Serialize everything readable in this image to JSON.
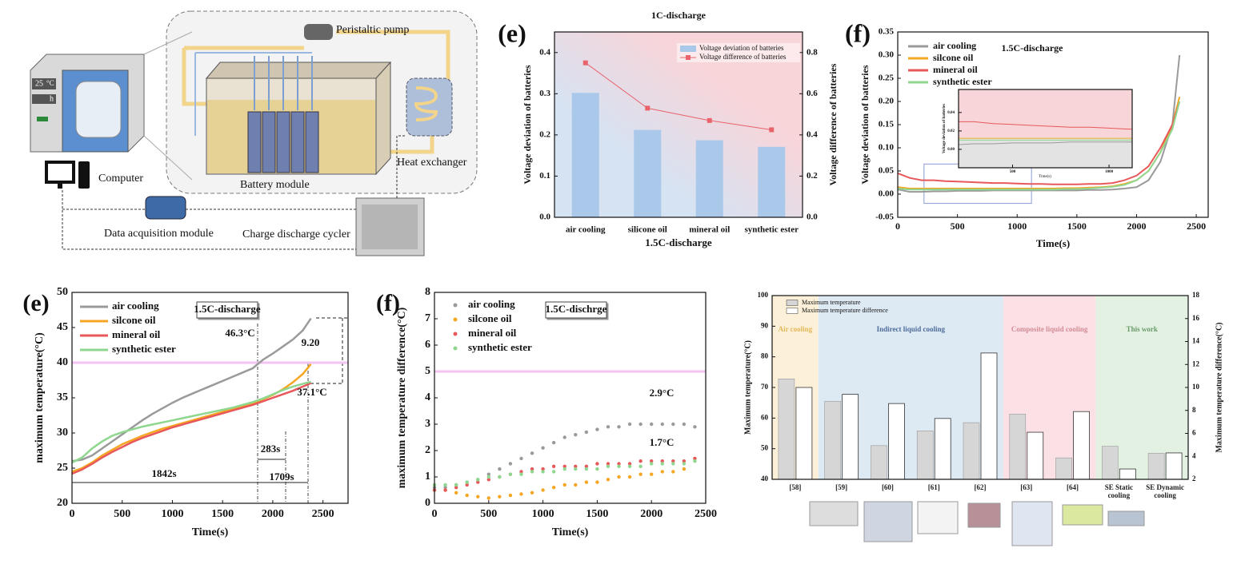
{
  "diagram": {
    "oven_temperature": "25",
    "oven_unit": "°C",
    "oven_time": "h",
    "pump": "Peristaltic pump",
    "heat_exchanger": "Heat exchanger",
    "computer": "Computer",
    "battery_module": "Battery module",
    "daq": "Data acquisition module",
    "cycler": "Charge discharge cycler"
  },
  "chart_data": [
    {
      "type": "bar",
      "panel_label": "(e)",
      "title": "1C-discharge",
      "xlabel": "1.5C-discharge",
      "ylabel": "Voltage deviation of batteries",
      "y2label": "Voltage difference of batteries",
      "categories": [
        "air cooling",
        "silicone oil",
        "mineral oil",
        "synthetic ester"
      ],
      "series": [
        {
          "name": "Voltage deviation of batteries",
          "color": "#a9c8ea",
          "values": [
            0.302,
            0.212,
            0.187,
            0.171
          ]
        },
        {
          "name": "Voltage difference of batteries",
          "color": "#e8636b",
          "values": [
            0.75,
            0.53,
            0.47,
            0.425
          ],
          "axis": "y2"
        }
      ],
      "ylim": [
        0,
        0.45
      ],
      "yticks": [
        {
          "value": 0,
          "label": "0.0"
        },
        0.1,
        0.2,
        0.3,
        0.4
      ],
      "y2lim": [
        0,
        0.9
      ],
      "y2ticks": [
        {
          "value": 0,
          "label": "0.0"
        },
        0.2,
        0.4,
        0.6,
        0.8
      ]
    },
    {
      "type": "line",
      "panel_label": "(f)",
      "annotation": "1.5C-discharge",
      "xlabel": "Time(s)",
      "ylabel": "Voltage deviation of batteries",
      "x": [
        0,
        100,
        200,
        300,
        400,
        500,
        600,
        700,
        800,
        900,
        1000,
        1100,
        1200,
        1300,
        1400,
        1500,
        1600,
        1700,
        1800,
        1900,
        2000,
        2100,
        2200,
        2300,
        2360
      ],
      "series": [
        {
          "name": "air cooling",
          "color": "#9a9a9a",
          "values": [
            0.01,
            0.005,
            0.005,
            0.006,
            0.006,
            0.007,
            0.007,
            0.007,
            0.008,
            0.008,
            0.008,
            0.008,
            0.008,
            0.008,
            0.008,
            0.008,
            0.009,
            0.009,
            0.01,
            0.012,
            0.015,
            0.03,
            0.07,
            0.15,
            0.3
          ]
        },
        {
          "name": "silcone oil",
          "color": "#f5a623",
          "values": [
            0.015,
            0.012,
            0.012,
            0.012,
            0.012,
            0.012,
            0.012,
            0.012,
            0.012,
            0.012,
            0.012,
            0.012,
            0.012,
            0.012,
            0.013,
            0.013,
            0.014,
            0.015,
            0.017,
            0.022,
            0.03,
            0.05,
            0.09,
            0.15,
            0.21
          ]
        },
        {
          "name": "mineral oil",
          "color": "#e8585a",
          "values": [
            0.045,
            0.035,
            0.03,
            0.03,
            0.028,
            0.027,
            0.026,
            0.025,
            0.024,
            0.024,
            0.023,
            0.022,
            0.022,
            0.021,
            0.021,
            0.021,
            0.022,
            0.022,
            0.024,
            0.03,
            0.04,
            0.06,
            0.1,
            0.15,
            0.2
          ]
        },
        {
          "name": "synthetic ester",
          "color": "#8fd68f",
          "values": [
            0.012,
            0.01,
            0.01,
            0.01,
            0.01,
            0.01,
            0.01,
            0.01,
            0.01,
            0.01,
            0.01,
            0.01,
            0.01,
            0.01,
            0.011,
            0.011,
            0.012,
            0.014,
            0.016,
            0.02,
            0.03,
            0.05,
            0.09,
            0.14,
            0.2
          ]
        }
      ],
      "xlim": [
        0,
        2600
      ],
      "xticks": [
        0,
        500,
        1000,
        1500,
        2000,
        2500
      ],
      "ylim": [
        -0.05,
        0.35
      ],
      "yticks": [
        -0.05,
        {
          "value": 0,
          "label": "0.00"
        },
        0.05,
        {
          "value": 0.1,
          "label": "0.10"
        },
        0.15,
        {
          "value": 0.2,
          "label": "0.20"
        },
        0.25,
        {
          "value": 0.3,
          "label": "0.30"
        },
        0.35
      ],
      "inset": {
        "xlabel": "Time(s)",
        "ylabel": "Voltage deviation of batteries",
        "xlim": [
          220,
          1120
        ],
        "xticks": [
          500,
          1000
        ],
        "ylim": [
          -0.02,
          0.065
        ],
        "yticks": [
          {
            "value": 0,
            "label": "0.00"
          },
          0.02,
          0.04
        ]
      }
    },
    {
      "type": "line",
      "panel_label": "(e)",
      "xlabel": "Time(s)",
      "ylabel": "maximum temperature(°C)",
      "annotations": [
        "1.5C-discharge",
        "46.3°C",
        "9.20",
        "37.1°C",
        "283s",
        "1842s",
        "1709s"
      ],
      "threshold": 40,
      "threshold_color": "#f3c4f3",
      "x": [
        0,
        100,
        200,
        300,
        400,
        500,
        600,
        700,
        800,
        900,
        1000,
        1100,
        1200,
        1300,
        1400,
        1500,
        1600,
        1700,
        1800,
        1900,
        2000,
        2100,
        2200,
        2300,
        2380
      ],
      "series": [
        {
          "name": "air cooling",
          "color": "#9a9a9a",
          "values": [
            26,
            26.2,
            26.8,
            27.8,
            28.8,
            29.8,
            30.8,
            31.8,
            32.7,
            33.5,
            34.3,
            35,
            35.6,
            36.2,
            36.8,
            37.4,
            38,
            38.6,
            39.2,
            40.4,
            41.3,
            42.3,
            43.3,
            44.6,
            46.3
          ]
        },
        {
          "name": "silcone oil",
          "color": "#f5a623",
          "values": [
            24.5,
            25,
            25.8,
            26.8,
            27.6,
            28.4,
            29,
            29.6,
            30.1,
            30.6,
            31,
            31.4,
            31.8,
            32.2,
            32.6,
            33,
            33.4,
            33.8,
            34.2,
            34.8,
            35.4,
            36.2,
            37.2,
            38.4,
            39.8
          ]
        },
        {
          "name": "mineral oil",
          "color": "#e8585a",
          "values": [
            24.2,
            24.8,
            25.6,
            26.5,
            27.3,
            28,
            28.7,
            29.3,
            29.8,
            30.3,
            30.8,
            31.2,
            31.6,
            32,
            32.4,
            32.8,
            33.2,
            33.6,
            34,
            34.5,
            35,
            35.5,
            36,
            36.6,
            37.1
          ]
        },
        {
          "name": "synthetic ester",
          "color": "#8fd68f",
          "values": [
            25.8,
            26.5,
            27.8,
            28.8,
            29.6,
            30.1,
            30.5,
            30.9,
            31.2,
            31.5,
            31.8,
            32.1,
            32.4,
            32.7,
            33,
            33.3,
            33.6,
            34,
            34.4,
            34.9,
            35.5,
            36.1,
            36.6,
            37,
            37.3
          ]
        }
      ],
      "xlim": [
        0,
        2750
      ],
      "xticks": [
        0,
        500,
        1000,
        1500,
        2000,
        2500
      ],
      "ylim": [
        20,
        50
      ],
      "yticks": [
        20,
        25,
        30,
        35,
        40,
        45,
        50
      ]
    },
    {
      "type": "scatter",
      "panel_label": "(f)",
      "xlabel": "Time(s)",
      "ylabel": "maximum temperature difference(°C)",
      "annotations": [
        "1.5C-dischrge",
        "2.9°C",
        "1.7°C"
      ],
      "threshold": 5,
      "threshold_color": "#f3c4f3",
      "x": [
        0,
        100,
        200,
        300,
        400,
        500,
        600,
        700,
        800,
        900,
        1000,
        1100,
        1200,
        1300,
        1400,
        1500,
        1600,
        1700,
        1800,
        1900,
        2000,
        2100,
        2200,
        2300,
        2400
      ],
      "series": [
        {
          "name": "air cooling",
          "color": "#9a9a9a",
          "values": [
            0.6,
            0.6,
            0.7,
            0.8,
            0.9,
            1.1,
            1.3,
            1.5,
            1.7,
            1.9,
            2.1,
            2.3,
            2.5,
            2.6,
            2.7,
            2.8,
            2.9,
            2.9,
            3,
            3,
            3,
            3,
            3,
            3,
            2.9
          ]
        },
        {
          "name": "silcone oil",
          "color": "#f5a623",
          "values": [
            0.5,
            0.5,
            0.4,
            0.3,
            0.25,
            0.2,
            0.25,
            0.3,
            0.35,
            0.4,
            0.5,
            0.6,
            0.7,
            0.7,
            0.8,
            0.8,
            0.9,
            1,
            1,
            1.1,
            1.1,
            1.2,
            1.2,
            1.3,
            1.7
          ]
        },
        {
          "name": "mineral oil",
          "color": "#e8585a",
          "values": [
            0.5,
            0.5,
            0.6,
            0.7,
            0.8,
            0.9,
            1,
            1.1,
            1.2,
            1.3,
            1.3,
            1.4,
            1.4,
            1.4,
            1.4,
            1.5,
            1.5,
            1.5,
            1.5,
            1.6,
            1.6,
            1.6,
            1.6,
            1.6,
            1.7
          ]
        },
        {
          "name": "synthetic ester",
          "color": "#8fd68f",
          "values": [
            0.7,
            0.7,
            0.7,
            0.8,
            0.9,
            1,
            1,
            1.1,
            1.1,
            1.2,
            1.2,
            1.2,
            1.3,
            1.3,
            1.3,
            1.3,
            1.4,
            1.4,
            1.4,
            1.4,
            1.5,
            1.5,
            1.5,
            1.5,
            1.6
          ]
        }
      ],
      "xlim": [
        0,
        2500
      ],
      "xticks": [
        0,
        500,
        1000,
        1500,
        2000,
        2500
      ],
      "ylim": [
        0,
        8
      ],
      "yticks": [
        0,
        1,
        2,
        3,
        4,
        5,
        6,
        7,
        8
      ]
    },
    {
      "type": "bar",
      "ylabel": "Maximum temperature(°C)",
      "y2label": "Maximum temperature difference(°C)",
      "categories": [
        "[58]",
        "[59]",
        "[60]",
        "[61]",
        "[62]",
        "[63]",
        "[64]",
        "SE Static cooling",
        "SE Dynamic cooling"
      ],
      "regions": [
        {
          "label": "Air cooling",
          "color": "#fcf1d8",
          "text_color": "#e5b65a"
        },
        {
          "label": "Indirect liquid cooling",
          "color": "#dde9f3",
          "text_color": "#4d6d9a"
        },
        {
          "label": "Composite liquid cooling",
          "color": "#fbe1e5",
          "text_color": "#d48a95"
        },
        {
          "label": "This work",
          "color": "#e2f1e2",
          "text_color": "#6a9a6a"
        }
      ],
      "series": [
        {
          "name": "Maximum temperature",
          "color": "#d6d6d6",
          "values": [
            72.8,
            65.5,
            51,
            55.8,
            58.5,
            61.3,
            47,
            50.8,
            48.5
          ]
        },
        {
          "name": "Maximum temperature difference",
          "color": "#ffffff",
          "values": [
            10,
            9.4,
            8.6,
            7.3,
            13,
            6.1,
            7.9,
            2.9,
            4.3
          ],
          "axis": "y2"
        }
      ],
      "ylim": [
        40,
        100
      ],
      "yticks": [
        40,
        50,
        60,
        70,
        80,
        90,
        100
      ],
      "y2lim": [
        2,
        18
      ],
      "y2ticks": [
        2,
        4,
        6,
        8,
        10,
        12,
        14,
        16,
        18
      ]
    }
  ]
}
